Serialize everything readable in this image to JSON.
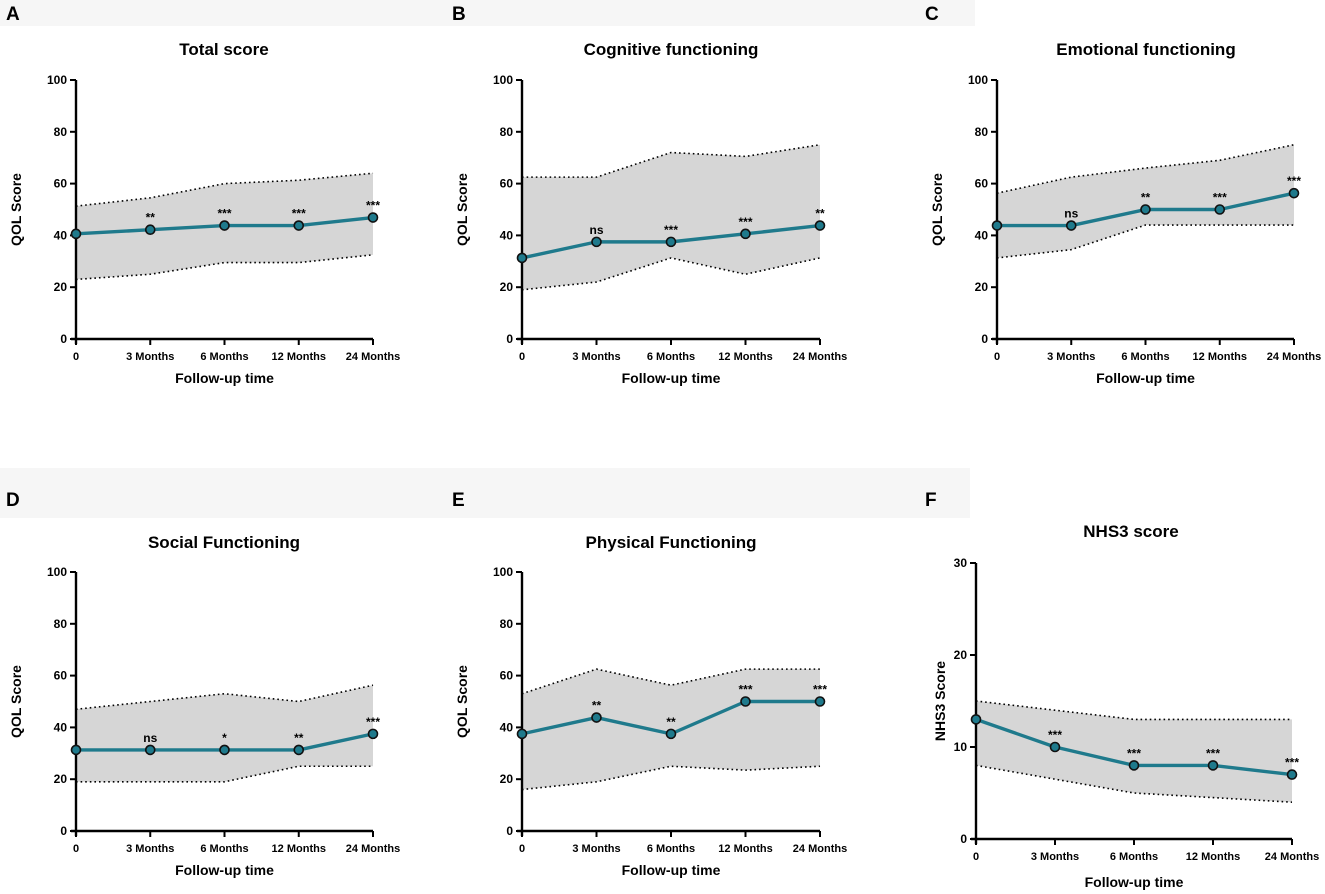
{
  "colors": {
    "line": "#1f7a8c",
    "band": "#d6d6d6",
    "axis": "#000000",
    "panel_header_bg": "#f6f6f6"
  },
  "chart_data": [
    {
      "panel": "A",
      "type": "line",
      "title": "Total score",
      "xlabel": "Follow-up time",
      "ylabel": "QOL Score",
      "categories": [
        "0",
        "3 Months",
        "6 Months",
        "12 Months",
        "24 Months"
      ],
      "ylim": [
        0,
        100
      ],
      "yticks": [
        0,
        20,
        40,
        60,
        80,
        100
      ],
      "ytick_labels": [
        "0",
        "20",
        "40",
        "60",
        "80",
        "100"
      ],
      "values": [
        40.6,
        42.2,
        43.8,
        43.8,
        46.9
      ],
      "upper": [
        51.3,
        54.5,
        60,
        61.3,
        64
      ],
      "lower": [
        23,
        25,
        29.5,
        29.5,
        32.5
      ],
      "significance": [
        "",
        "**",
        "***",
        "***",
        "***"
      ]
    },
    {
      "panel": "B",
      "type": "line",
      "title": "Cognitive functioning",
      "xlabel": "Follow-up time",
      "ylabel": "QOL Score",
      "categories": [
        "0",
        "3 Months",
        "6 Months",
        "12 Months",
        "24 Months"
      ],
      "ylim": [
        0,
        100
      ],
      "yticks": [
        0,
        20,
        40,
        60,
        80,
        100
      ],
      "ytick_labels": [
        "0",
        "20",
        "40",
        "60",
        "80",
        "100"
      ],
      "values": [
        31.3,
        37.5,
        37.5,
        40.6,
        43.8
      ],
      "upper": [
        62.5,
        62.5,
        72,
        70.5,
        75
      ],
      "lower": [
        19,
        22,
        31.3,
        25,
        31.3
      ],
      "significance": [
        "",
        "ns",
        "***",
        "***",
        "**"
      ]
    },
    {
      "panel": "C",
      "type": "line",
      "title": "Emotional functioning",
      "xlabel": "Follow-up time",
      "ylabel": "QOL Score",
      "categories": [
        "0",
        "3 Months",
        "6 Months",
        "12 Months",
        "24 Months"
      ],
      "ylim": [
        0,
        100
      ],
      "yticks": [
        0,
        20,
        40,
        60,
        80,
        100
      ],
      "ytick_labels": [
        "0",
        "20",
        "40",
        "60",
        "80",
        "100"
      ],
      "values": [
        43.8,
        43.8,
        50,
        50,
        56.3
      ],
      "upper": [
        56.3,
        62.5,
        66,
        69,
        75
      ],
      "lower": [
        31.3,
        34.5,
        44,
        44,
        44
      ],
      "significance": [
        "",
        "ns",
        "**",
        "***",
        "***"
      ]
    },
    {
      "panel": "D",
      "type": "line",
      "title": "Social Functioning",
      "xlabel": "Follow-up time",
      "ylabel": "QOL Score",
      "categories": [
        "0",
        "3 Months",
        "6 Months",
        "12 Months",
        "24 Months"
      ],
      "ylim": [
        0,
        100
      ],
      "yticks": [
        0,
        20,
        40,
        60,
        80,
        100
      ],
      "ytick_labels": [
        "0",
        "20",
        "40",
        "60",
        "80",
        "100"
      ],
      "values": [
        31.3,
        31.3,
        31.3,
        31.3,
        37.5
      ],
      "upper": [
        47,
        50,
        53,
        50,
        56.3
      ],
      "lower": [
        19,
        19,
        19,
        25,
        25
      ],
      "significance": [
        "",
        "ns",
        "*",
        "**",
        "***"
      ]
    },
    {
      "panel": "E",
      "type": "line",
      "title": "Physical Functioning",
      "xlabel": "Follow-up time",
      "ylabel": "QOL Score",
      "categories": [
        "0",
        "3 Months",
        "6 Months",
        "12 Months",
        "24 Months"
      ],
      "ylim": [
        0,
        100
      ],
      "yticks": [
        0,
        20,
        40,
        60,
        80,
        100
      ],
      "ytick_labels": [
        "0",
        "20",
        "40",
        "60",
        "80",
        "100"
      ],
      "values": [
        37.5,
        43.8,
        37.5,
        50,
        50
      ],
      "upper": [
        53,
        62.5,
        56.3,
        62.5,
        62.5
      ],
      "lower": [
        16,
        19,
        25,
        23.5,
        25
      ],
      "significance": [
        "",
        "**",
        "**",
        "***",
        "***"
      ]
    },
    {
      "panel": "F",
      "type": "line",
      "title": "NHS3 score",
      "xlabel": "Follow-up time",
      "ylabel": "NHS3 Score",
      "categories": [
        "0",
        "3 Months",
        "6 Months",
        "12 Months",
        "24 Months"
      ],
      "ylim": [
        0,
        30
      ],
      "yticks": [
        0,
        10,
        20,
        30
      ],
      "ytick_labels": [
        "0",
        "10",
        "20",
        "30"
      ],
      "values": [
        13,
        10,
        8,
        8,
        7
      ],
      "upper": [
        15,
        14,
        13,
        13,
        13
      ],
      "lower": [
        8,
        6.5,
        5,
        4.5,
        4
      ],
      "significance": [
        "",
        "***",
        "***",
        "***",
        "***"
      ]
    }
  ]
}
